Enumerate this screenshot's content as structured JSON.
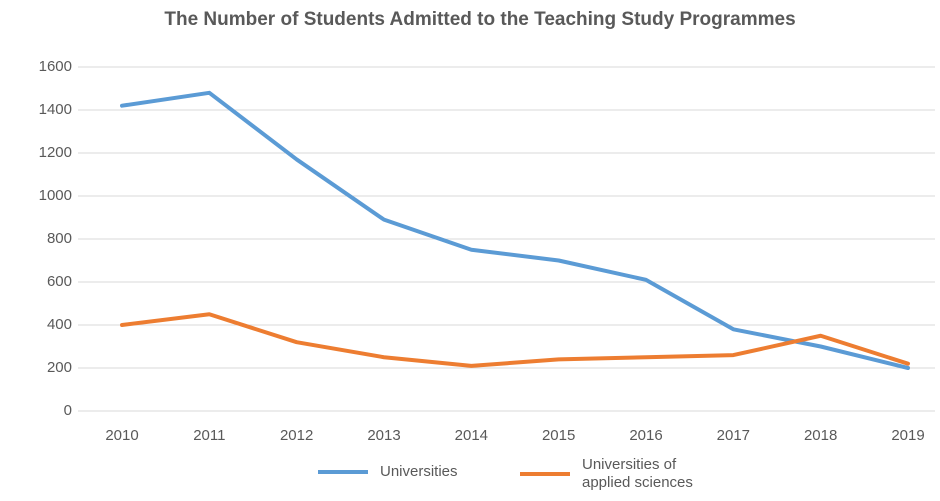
{
  "chart_data": {
    "type": "line",
    "title": "The Number of Students Admitted to the Teaching Study Programmes",
    "categories": [
      "2010",
      "2011",
      "2012",
      "2013",
      "2014",
      "2015",
      "2016",
      "2017",
      "2018",
      "2019"
    ],
    "series": [
      {
        "name": "Universities",
        "color": "#5b9bd5",
        "values": [
          1420,
          1480,
          1170,
          890,
          750,
          700,
          610,
          380,
          300,
          200
        ]
      },
      {
        "name": "Universities of applied sciences",
        "color": "#ed7d31",
        "values": [
          400,
          450,
          320,
          250,
          210,
          240,
          250,
          260,
          350,
          220
        ]
      }
    ],
    "ylim": [
      0,
      1600
    ],
    "yticks": [
      0,
      200,
      400,
      600,
      800,
      1000,
      1200,
      1400,
      1600
    ],
    "grid": true,
    "legend": "bottom"
  }
}
